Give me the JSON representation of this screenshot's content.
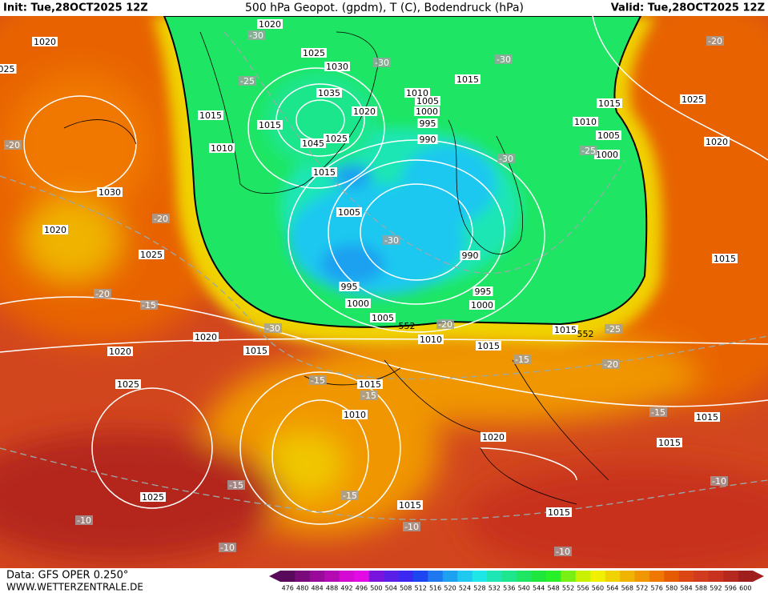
{
  "header": {
    "init": "Init: Tue,28OCT2025 12Z",
    "title": "500 hPa Geopot. (gpdm), T (C), Bodendruck (hPa)",
    "valid": "Valid: Tue,28OCT2025 12Z"
  },
  "footer": {
    "source": "Data: GFS OPER 0.250°",
    "site": "WWW.WETTERZENTRALE.DE"
  },
  "legend": {
    "values": [
      476,
      480,
      484,
      488,
      492,
      496,
      500,
      504,
      508,
      512,
      516,
      520,
      524,
      528,
      532,
      536,
      540,
      544,
      548,
      552,
      556,
      560,
      564,
      568,
      572,
      576,
      580,
      584,
      588,
      592,
      596,
      600
    ],
    "colors": [
      "#5a0a5a",
      "#7a0a7a",
      "#9a0a9a",
      "#b40ab4",
      "#d20ad2",
      "#e40ae4",
      "#7814dc",
      "#5a1ee6",
      "#3c28f0",
      "#1e46f0",
      "#1e78f0",
      "#1ea0f0",
      "#1ec8f0",
      "#1ee6e6",
      "#1ee6b4",
      "#1ee68c",
      "#1ee664",
      "#1ee63c",
      "#28f028",
      "#78f014",
      "#c8f000",
      "#f0f000",
      "#f0d200",
      "#f0b400",
      "#f09600",
      "#f07800",
      "#e65a00",
      "#dc4614",
      "#d23c1e",
      "#c8321e",
      "#b4281e",
      "#a01e1e"
    ]
  },
  "isobar_labels": [
    "1020",
    "1020",
    "1025",
    "1030",
    "1035",
    "1020",
    "1015",
    "1015",
    "1045",
    "1025",
    "1010",
    "1015",
    "1030",
    "1020",
    "1025",
    "1005",
    "1015",
    "1010",
    "1005",
    "1000",
    "995",
    "990",
    "1015",
    "1010",
    "1005",
    "1000",
    "1025",
    "1020",
    "990",
    "995",
    "1000",
    "1005",
    "995",
    "1000",
    "1010",
    "1015",
    "1015",
    "1015",
    "1020",
    "1015",
    "1020",
    "1025",
    "1015",
    "1010",
    "1020",
    "1015",
    "1015",
    "1025",
    "1015",
    "1015",
    "025"
  ],
  "temperature_labels": [
    "-30",
    "-25",
    "-30",
    "-30",
    "-20",
    "-20",
    "-25",
    "-30",
    "-20",
    "-30",
    "-20",
    "-15",
    "-30",
    "-20",
    "-25",
    "-20",
    "-15",
    "-15",
    "-15",
    "-15",
    "-15",
    "-15",
    "-10",
    "-10",
    "-10",
    "-10",
    "-10"
  ],
  "contour_labels": [
    "552",
    "552"
  ]
}
